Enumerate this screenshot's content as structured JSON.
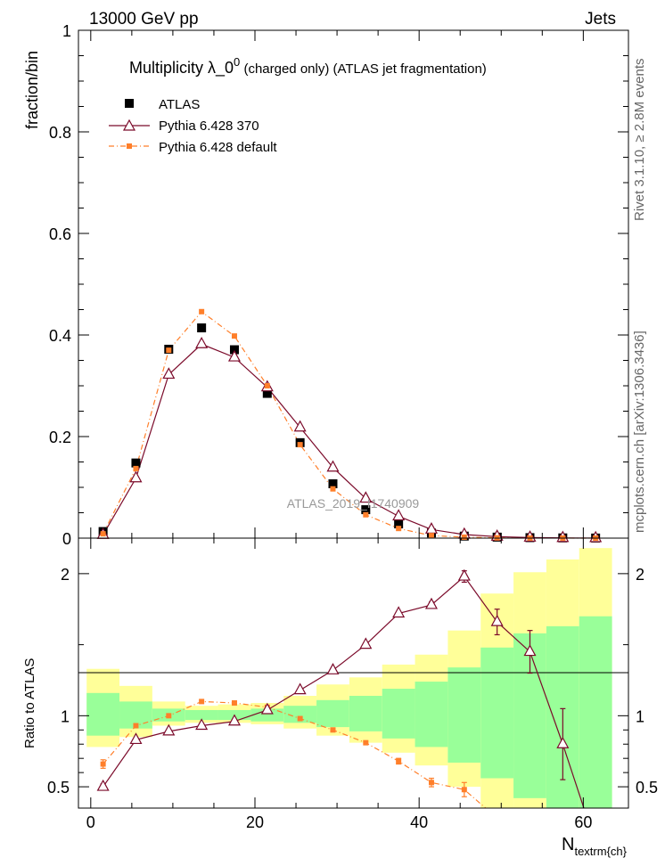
{
  "header": {
    "left": "13000 GeV pp",
    "right": "Jets"
  },
  "side_labels": {
    "rivet": "Rivet 3.1.10, ≥ 2.8M events",
    "mcplots": "mcplots.cern.ch [arXiv:1306.3436]"
  },
  "watermark": "ATLAS_2019_I1740909",
  "chart_data": {
    "type": "scatter",
    "title_main": "Multiplicity  λ_0",
    "title_sup": "0",
    "title_rest": " (charged only) (ATLAS jet fragmentation)",
    "xlabel": "N",
    "xlabel_sub": "textrm{ch}",
    "ylabel_top": "fraction/bin",
    "ylabel_bottom": "Ratio to ATLAS",
    "xlim": [
      -1.5,
      65.5
    ],
    "ylim_top": [
      0,
      1
    ],
    "ylim_bottom": [
      0.35,
      2.25
    ],
    "xticks": [
      0,
      20,
      40,
      60
    ],
    "yticks_top": [
      0,
      0.2,
      0.4,
      0.6,
      0.8,
      1
    ],
    "ytick_labels_top": [
      "0",
      "0.2",
      "0.4",
      "0.6",
      "0.8",
      "1"
    ],
    "yticks_bottom": [
      0.5,
      1,
      2
    ],
    "ytick_labels_bottom": [
      "0.5",
      "1",
      "2"
    ],
    "x": [
      1.5,
      5.5,
      9.5,
      13.5,
      17.5,
      21.5,
      25.5,
      29.5,
      33.5,
      37.5,
      41.5,
      45.5,
      49.5,
      53.5,
      57.5,
      61.5
    ],
    "bin_edges": [
      -0.5,
      3.5,
      7.5,
      11.5,
      15.5,
      19.5,
      23.5,
      27.5,
      31.5,
      35.5,
      39.5,
      43.5,
      47.5,
      51.5,
      55.5,
      59.5,
      63.5
    ],
    "series": [
      {
        "name": "ATLAS",
        "color": "#000000",
        "marker": "square",
        "values": [
          0.013,
          0.148,
          0.372,
          0.414,
          0.371,
          0.285,
          0.188,
          0.107,
          0.056,
          0.028,
          0.01,
          0.004,
          0.002,
          0.001,
          0.0005,
          0.0002
        ]
      },
      {
        "name": "Pythia 6.428 370",
        "color": "#7b0a2a",
        "marker": "triangle",
        "values": [
          0.0065,
          0.118,
          0.322,
          0.382,
          0.356,
          0.297,
          0.218,
          0.139,
          0.078,
          0.043,
          0.017,
          0.007,
          0.003,
          0.0012,
          0.0004,
          0.0001
        ],
        "ratio": [
          0.5,
          0.83,
          0.89,
          0.93,
          0.96,
          1.04,
          1.18,
          1.32,
          1.5,
          1.72,
          1.78,
          1.98,
          1.66,
          1.45,
          0.8,
          0.05
        ],
        "ratio_err": [
          0.02,
          0.01,
          0.01,
          0.01,
          0.01,
          0.01,
          0.01,
          0.01,
          0.01,
          0.01,
          0.02,
          0.04,
          0.09,
          0.15,
          0.25,
          0.0
        ]
      },
      {
        "name": "Pythia 6.428 default",
        "color": "#ff7f2a",
        "marker": "square-small",
        "values": [
          0.0085,
          0.137,
          0.37,
          0.446,
          0.398,
          0.3,
          0.184,
          0.097,
          0.046,
          0.019,
          0.005,
          0.0019,
          0.0006,
          0.0002,
          0.0001,
          0.0
        ],
        "ratio": [
          0.66,
          0.93,
          1.0,
          1.1,
          1.09,
          1.06,
          0.98,
          0.9,
          0.81,
          0.68,
          0.53,
          0.48,
          0.28,
          0.2,
          0.12,
          0.05
        ],
        "ratio_err": [
          0.03,
          0.01,
          0.01,
          0.01,
          0.01,
          0.01,
          0.01,
          0.01,
          0.01,
          0.02,
          0.03,
          0.05,
          0.0,
          0.0,
          0.0,
          0.0
        ]
      }
    ],
    "uncertainty_bands": {
      "inner_color": "#99ff99",
      "outer_color": "#ffff99",
      "inner": [
        [
          0.86,
          1.16
        ],
        [
          0.91,
          1.1
        ],
        [
          0.96,
          1.05
        ],
        [
          0.97,
          1.04
        ],
        [
          0.97,
          1.04
        ],
        [
          0.96,
          1.05
        ],
        [
          0.95,
          1.07
        ],
        [
          0.92,
          1.11
        ],
        [
          0.89,
          1.14
        ],
        [
          0.84,
          1.19
        ],
        [
          0.78,
          1.24
        ],
        [
          0.67,
          1.34
        ],
        [
          0.56,
          1.48
        ],
        [
          0.42,
          1.58
        ],
        [
          0.35,
          1.63
        ],
        [
          0.35,
          1.7
        ]
      ],
      "outer": [
        [
          0.78,
          1.33
        ],
        [
          0.85,
          1.21
        ],
        [
          0.93,
          1.1
        ],
        [
          0.95,
          1.07
        ],
        [
          0.95,
          1.08
        ],
        [
          0.94,
          1.09
        ],
        [
          0.91,
          1.14
        ],
        [
          0.86,
          1.22
        ],
        [
          0.81,
          1.27
        ],
        [
          0.74,
          1.36
        ],
        [
          0.65,
          1.43
        ],
        [
          0.5,
          1.6
        ],
        [
          0.35,
          1.86
        ],
        [
          0.35,
          2.01
        ],
        [
          0.35,
          2.1
        ],
        [
          0.35,
          2.18
        ]
      ]
    }
  }
}
